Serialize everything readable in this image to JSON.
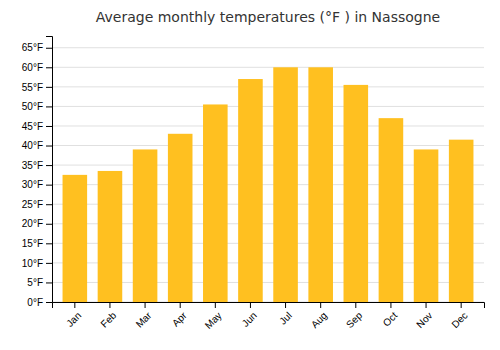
{
  "chart_data": {
    "type": "bar",
    "title": "Average monthly temperatures (°F ) in Nassogne",
    "categories": [
      "Jan",
      "Feb",
      "Mar",
      "Apr",
      "May",
      "Jun",
      "Jul",
      "Aug",
      "Sep",
      "Oct",
      "Nov",
      "Dec"
    ],
    "values": [
      32.5,
      33.5,
      39,
      43,
      50.5,
      57,
      60,
      60,
      55.5,
      47,
      39,
      41.5
    ],
    "color": "#FFC020",
    "ylim": [
      0,
      68
    ],
    "yticks": [
      {
        "value": 0,
        "label": "0°F"
      },
      {
        "value": 5,
        "label": "5°F"
      },
      {
        "value": 10,
        "label": "10°F"
      },
      {
        "value": 15,
        "label": "15°F"
      },
      {
        "value": 20,
        "label": "20°F"
      },
      {
        "value": 25,
        "label": "25°F"
      },
      {
        "value": 30,
        "label": "30°F"
      },
      {
        "value": 35,
        "label": "35°F"
      },
      {
        "value": 40,
        "label": "40°F"
      },
      {
        "value": 45,
        "label": "45°F"
      },
      {
        "value": 50,
        "label": "50°F"
      },
      {
        "value": 55,
        "label": "55°F"
      },
      {
        "value": 60,
        "label": "60°F"
      },
      {
        "value": 65,
        "label": "65°F"
      }
    ],
    "grid": true
  }
}
